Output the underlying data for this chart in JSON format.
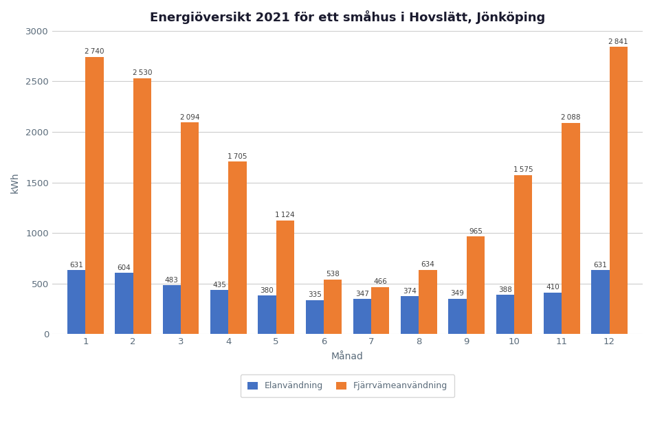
{
  "title": "Energiöversikt 2021 för ett småhus i Hovslätt, Jönköping",
  "xlabel": "Månad",
  "ylabel": "kWh",
  "months": [
    1,
    2,
    3,
    4,
    5,
    6,
    7,
    8,
    9,
    10,
    11,
    12
  ],
  "elanvandning": [
    631,
    604,
    483,
    435,
    380,
    335,
    347,
    374,
    349,
    388,
    410,
    631
  ],
  "fjarrvarmeanvandning": [
    2740,
    2530,
    2094,
    1705,
    1124,
    538,
    466,
    634,
    965,
    1575,
    2088,
    2841
  ],
  "el_color": "#4472C4",
  "fj_color": "#ED7D31",
  "el_label": "Elanvändning",
  "fj_label": "Fjärrvämeanvändning",
  "ylim": [
    0,
    3000
  ],
  "background_color": "#FFFFFF",
  "title_fontsize": 13,
  "bar_width": 0.38,
  "label_color": "#404040",
  "axis_label_color": "#5A6B7A",
  "tick_label_color": "#5A6B7A"
}
